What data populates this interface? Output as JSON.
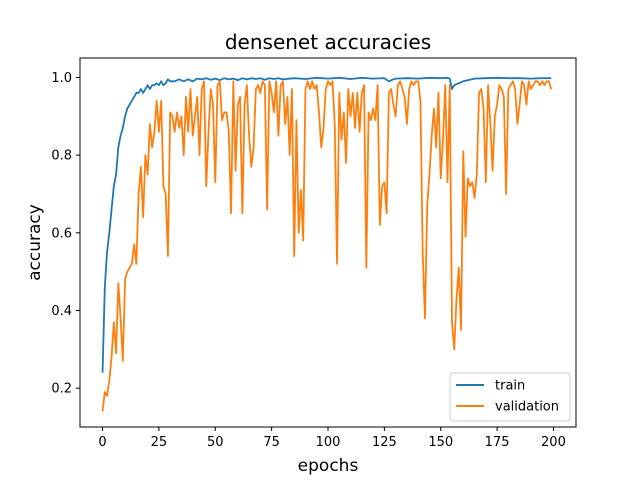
{
  "chart_data": {
    "type": "line",
    "title": "densenet accuracies",
    "xlabel": "epochs",
    "ylabel": "accuracy",
    "xlim": [
      -10,
      210
    ],
    "ylim": [
      0.1,
      1.05
    ],
    "xticks": [
      0,
      25,
      50,
      75,
      100,
      125,
      150,
      175,
      200
    ],
    "yticks": [
      0.2,
      0.4,
      0.6,
      0.8,
      1.0
    ],
    "grid": false,
    "legend_position": "lower-right",
    "series": [
      {
        "name": "train",
        "color": "#1f77b4",
        "points": [
          [
            0,
            0.24
          ],
          [
            1,
            0.46
          ],
          [
            2,
            0.55
          ],
          [
            3,
            0.6
          ],
          [
            4,
            0.66
          ],
          [
            5,
            0.72
          ],
          [
            6,
            0.75
          ],
          [
            7,
            0.82
          ],
          [
            8,
            0.85
          ],
          [
            9,
            0.87
          ],
          [
            10,
            0.9
          ],
          [
            11,
            0.92
          ],
          [
            12,
            0.93
          ],
          [
            13,
            0.94
          ],
          [
            14,
            0.95
          ],
          [
            15,
            0.96
          ],
          [
            16,
            0.96
          ],
          [
            17,
            0.97
          ],
          [
            18,
            0.96
          ],
          [
            19,
            0.97
          ],
          [
            20,
            0.98
          ],
          [
            21,
            0.97
          ],
          [
            22,
            0.98
          ],
          [
            23,
            0.98
          ],
          [
            24,
            0.985
          ],
          [
            25,
            0.98
          ],
          [
            26,
            0.99
          ],
          [
            27,
            0.98
          ],
          [
            28,
            0.985
          ],
          [
            29,
            0.995
          ],
          [
            30,
            0.99
          ],
          [
            32,
            0.99
          ],
          [
            34,
            0.995
          ],
          [
            36,
            0.99
          ],
          [
            38,
            0.995
          ],
          [
            40,
            0.99
          ],
          [
            42,
            0.997
          ],
          [
            44,
            0.995
          ],
          [
            46,
            0.998
          ],
          [
            48,
            0.994
          ],
          [
            50,
            0.997
          ],
          [
            52,
            0.993
          ],
          [
            54,
            0.998
          ],
          [
            56,
            0.995
          ],
          [
            58,
            0.997
          ],
          [
            60,
            0.993
          ],
          [
            62,
            0.998
          ],
          [
            64,
            0.995
          ],
          [
            66,
            0.998
          ],
          [
            68,
            0.996
          ],
          [
            70,
            0.998
          ],
          [
            72,
            0.994
          ],
          [
            74,
            0.998
          ],
          [
            76,
            0.996
          ],
          [
            78,
            0.998
          ],
          [
            80,
            0.995
          ],
          [
            85,
            0.998
          ],
          [
            90,
            0.996
          ],
          [
            95,
            0.999
          ],
          [
            100,
            0.997
          ],
          [
            105,
            0.999
          ],
          [
            110,
            0.996
          ],
          [
            115,
            0.999
          ],
          [
            120,
            0.997
          ],
          [
            125,
            0.998
          ],
          [
            127,
            0.99
          ],
          [
            129,
            0.995
          ],
          [
            130,
            0.997
          ],
          [
            135,
            0.998
          ],
          [
            140,
            0.997
          ],
          [
            145,
            0.999
          ],
          [
            150,
            0.998
          ],
          [
            153,
            0.999
          ],
          [
            154,
            0.997
          ],
          [
            155,
            0.97
          ],
          [
            156,
            0.98
          ],
          [
            158,
            0.985
          ],
          [
            160,
            0.99
          ],
          [
            165,
            0.997
          ],
          [
            170,
            0.998
          ],
          [
            175,
            0.999
          ],
          [
            180,
            0.998
          ],
          [
            185,
            0.998
          ],
          [
            190,
            0.997
          ],
          [
            195,
            0.998
          ],
          [
            199,
            0.998
          ]
        ]
      },
      {
        "name": "validation",
        "color": "#ff7f0e",
        "points": [
          [
            0,
            0.14
          ],
          [
            1,
            0.19
          ],
          [
            2,
            0.18
          ],
          [
            3,
            0.22
          ],
          [
            4,
            0.28
          ],
          [
            5,
            0.37
          ],
          [
            6,
            0.29
          ],
          [
            7,
            0.47
          ],
          [
            8,
            0.38
          ],
          [
            9,
            0.27
          ],
          [
            10,
            0.48
          ],
          [
            11,
            0.5
          ],
          [
            12,
            0.51
          ],
          [
            13,
            0.52
          ],
          [
            14,
            0.57
          ],
          [
            15,
            0.52
          ],
          [
            16,
            0.7
          ],
          [
            17,
            0.77
          ],
          [
            18,
            0.64
          ],
          [
            19,
            0.8
          ],
          [
            20,
            0.75
          ],
          [
            21,
            0.88
          ],
          [
            22,
            0.82
          ],
          [
            23,
            0.86
          ],
          [
            24,
            0.94
          ],
          [
            25,
            0.86
          ],
          [
            26,
            0.94
          ],
          [
            27,
            0.72
          ],
          [
            28,
            0.7
          ],
          [
            29,
            0.54
          ],
          [
            30,
            0.91
          ],
          [
            31,
            0.9
          ],
          [
            32,
            0.86
          ],
          [
            33,
            0.91
          ],
          [
            34,
            0.87
          ],
          [
            35,
            0.9
          ],
          [
            36,
            0.8
          ],
          [
            37,
            0.95
          ],
          [
            38,
            0.86
          ],
          [
            39,
            0.97
          ],
          [
            40,
            0.85
          ],
          [
            41,
            0.9
          ],
          [
            42,
            0.95
          ],
          [
            43,
            0.8
          ],
          [
            44,
            0.97
          ],
          [
            45,
            0.99
          ],
          [
            46,
            0.72
          ],
          [
            47,
            0.86
          ],
          [
            48,
            0.97
          ],
          [
            49,
            0.93
          ],
          [
            50,
            0.73
          ],
          [
            51,
            0.98
          ],
          [
            52,
            0.99
          ],
          [
            53,
            0.89
          ],
          [
            54,
            0.91
          ],
          [
            55,
            0.91
          ],
          [
            56,
            0.86
          ],
          [
            57,
            0.65
          ],
          [
            58,
            0.99
          ],
          [
            59,
            0.76
          ],
          [
            60,
            0.93
          ],
          [
            61,
            0.95
          ],
          [
            62,
            0.65
          ],
          [
            63,
            0.93
          ],
          [
            64,
            0.98
          ],
          [
            65,
            0.85
          ],
          [
            66,
            0.77
          ],
          [
            67,
            0.82
          ],
          [
            68,
            0.97
          ],
          [
            69,
            0.98
          ],
          [
            70,
            0.96
          ],
          [
            71,
            0.99
          ],
          [
            72,
            0.98
          ],
          [
            73,
            0.66
          ],
          [
            74,
            0.99
          ],
          [
            75,
            0.96
          ],
          [
            76,
            0.91
          ],
          [
            77,
            0.99
          ],
          [
            78,
            0.85
          ],
          [
            79,
            0.98
          ],
          [
            80,
            0.99
          ],
          [
            81,
            0.88
          ],
          [
            82,
            0.95
          ],
          [
            83,
            0.8
          ],
          [
            84,
            0.97
          ],
          [
            85,
            0.54
          ],
          [
            86,
            0.89
          ],
          [
            87,
            0.6
          ],
          [
            88,
            0.71
          ],
          [
            89,
            0.58
          ],
          [
            90,
            0.97
          ],
          [
            91,
            0.99
          ],
          [
            92,
            0.97
          ],
          [
            93,
            0.99
          ],
          [
            94,
            0.97
          ],
          [
            95,
            0.98
          ],
          [
            96,
            0.91
          ],
          [
            97,
            0.82
          ],
          [
            98,
            0.87
          ],
          [
            99,
            0.97
          ],
          [
            100,
            0.99
          ],
          [
            101,
            0.98
          ],
          [
            102,
            0.99
          ],
          [
            103,
            0.88
          ],
          [
            104,
            0.52
          ],
          [
            105,
            0.96
          ],
          [
            106,
            0.84
          ],
          [
            107,
            0.91
          ],
          [
            108,
            0.78
          ],
          [
            109,
            0.97
          ],
          [
            110,
            0.9
          ],
          [
            111,
            0.96
          ],
          [
            112,
            0.87
          ],
          [
            113,
            0.96
          ],
          [
            114,
            0.86
          ],
          [
            115,
            0.96
          ],
          [
            116,
            0.98
          ],
          [
            117,
            0.51
          ],
          [
            118,
            0.91
          ],
          [
            119,
            0.89
          ],
          [
            120,
            0.92
          ],
          [
            121,
            0.89
          ],
          [
            122,
            0.98
          ],
          [
            123,
            0.62
          ],
          [
            124,
            0.72
          ],
          [
            125,
            0.73
          ],
          [
            126,
            0.65
          ],
          [
            127,
            0.96
          ],
          [
            128,
            0.97
          ],
          [
            129,
            0.93
          ],
          [
            130,
            0.9
          ],
          [
            131,
            0.98
          ],
          [
            132,
            0.99
          ],
          [
            133,
            0.97
          ],
          [
            134,
            0.95
          ],
          [
            135,
            0.88
          ],
          [
            136,
            0.97
          ],
          [
            137,
            0.99
          ],
          [
            138,
            0.98
          ],
          [
            139,
            0.99
          ],
          [
            140,
            0.99
          ],
          [
            141,
            0.94
          ],
          [
            142,
            0.55
          ],
          [
            143,
            0.38
          ],
          [
            144,
            0.67
          ],
          [
            145,
            0.75
          ],
          [
            146,
            0.85
          ],
          [
            147,
            0.92
          ],
          [
            148,
            0.82
          ],
          [
            149,
            0.96
          ],
          [
            150,
            0.74
          ],
          [
            151,
            0.84
          ],
          [
            152,
            0.98
          ],
          [
            153,
            0.73
          ],
          [
            154,
            0.98
          ],
          [
            155,
            0.37
          ],
          [
            156,
            0.3
          ],
          [
            157,
            0.43
          ],
          [
            158,
            0.51
          ],
          [
            159,
            0.35
          ],
          [
            160,
            0.81
          ],
          [
            161,
            0.59
          ],
          [
            162,
            0.74
          ],
          [
            163,
            0.72
          ],
          [
            164,
            0.73
          ],
          [
            165,
            0.69
          ],
          [
            166,
            0.75
          ],
          [
            167,
            0.96
          ],
          [
            168,
            0.97
          ],
          [
            169,
            0.92
          ],
          [
            170,
            0.73
          ],
          [
            171,
            0.98
          ],
          [
            172,
            0.88
          ],
          [
            173,
            0.76
          ],
          [
            174,
            0.9
          ],
          [
            175,
            0.93
          ],
          [
            176,
            0.98
          ],
          [
            177,
            0.97
          ],
          [
            178,
            0.95
          ],
          [
            179,
            0.7
          ],
          [
            180,
            0.97
          ],
          [
            181,
            0.98
          ],
          [
            182,
            0.99
          ],
          [
            183,
            0.97
          ],
          [
            184,
            0.88
          ],
          [
            185,
            0.93
          ],
          [
            186,
            0.99
          ],
          [
            187,
            0.98
          ],
          [
            188,
            0.93
          ],
          [
            189,
            0.99
          ],
          [
            190,
            0.97
          ],
          [
            191,
            0.98
          ],
          [
            192,
            0.99
          ],
          [
            193,
            0.99
          ],
          [
            194,
            0.98
          ],
          [
            195,
            0.99
          ],
          [
            196,
            0.98
          ],
          [
            197,
            0.99
          ],
          [
            198,
            0.99
          ],
          [
            199,
            0.97
          ]
        ]
      }
    ]
  }
}
